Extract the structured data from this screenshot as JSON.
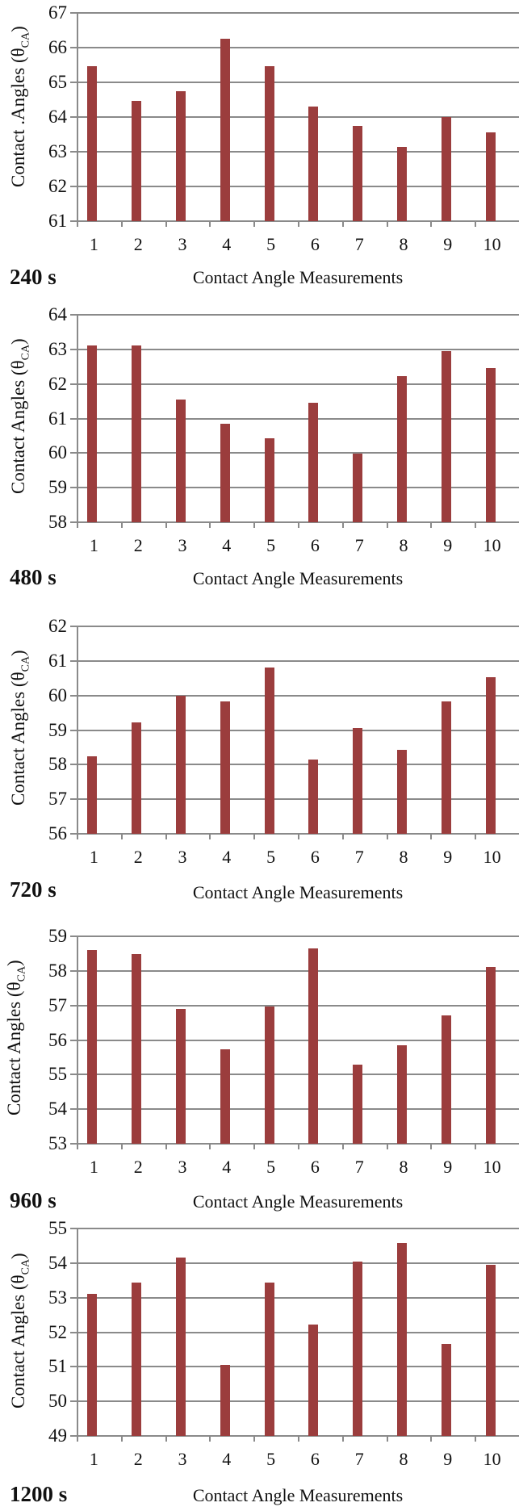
{
  "chart_data": [
    {
      "type": "bar",
      "title": "240 s",
      "xlabel": "Contact Angle Measurements",
      "ylabel": "Contact .Angles (θCA)",
      "categories": [
        "1",
        "2",
        "3",
        "4",
        "5",
        "6",
        "7",
        "8",
        "9",
        "10"
      ],
      "values": [
        65.47,
        64.47,
        64.74,
        66.25,
        65.47,
        64.3,
        63.75,
        63.15,
        64.0,
        63.55
      ],
      "ylim": [
        61,
        67
      ],
      "yticks": [
        61,
        62,
        63,
        64,
        65,
        66,
        67
      ],
      "grid": true,
      "color": "#9b3d3d"
    },
    {
      "type": "bar",
      "title": "480 s",
      "xlabel": "Contact Angle Measurements",
      "ylabel": "Contact Angles (θCA)",
      "categories": [
        "1",
        "2",
        "3",
        "4",
        "5",
        "6",
        "7",
        "8",
        "9",
        "10"
      ],
      "values": [
        63.12,
        63.12,
        61.55,
        60.85,
        60.42,
        61.45,
        59.98,
        62.23,
        62.94,
        62.47
      ],
      "ylim": [
        58,
        64
      ],
      "yticks": [
        58,
        59,
        60,
        61,
        62,
        63,
        64
      ],
      "grid": true,
      "color": "#9b3d3d"
    },
    {
      "type": "bar",
      "title": "720 s",
      "xlabel": "Contact Angle Measurements",
      "ylabel": "Contact Angles (θCA)",
      "categories": [
        "1",
        "2",
        "3",
        "4",
        "5",
        "6",
        "7",
        "8",
        "9",
        "10"
      ],
      "values": [
        58.24,
        59.23,
        60.0,
        59.83,
        60.8,
        58.15,
        59.07,
        58.42,
        59.83,
        60.54
      ],
      "ylim": [
        56,
        62
      ],
      "yticks": [
        56,
        57,
        58,
        59,
        60,
        61,
        62
      ],
      "grid": true,
      "color": "#9b3d3d"
    },
    {
      "type": "bar",
      "title": "960 s",
      "xlabel": "Contact Angle Measurements",
      "ylabel": "Contact Angles (θCA)",
      "categories": [
        "1",
        "2",
        "3",
        "4",
        "5",
        "6",
        "7",
        "8",
        "9",
        "10"
      ],
      "values": [
        58.6,
        58.48,
        56.91,
        55.72,
        56.98,
        58.65,
        55.29,
        55.85,
        56.72,
        58.12
      ],
      "ylim": [
        53,
        59
      ],
      "yticks": [
        53,
        54,
        55,
        56,
        57,
        58,
        59
      ],
      "grid": true,
      "color": "#9b3d3d"
    },
    {
      "type": "bar",
      "title": "1200 s",
      "xlabel": "Contact Angle Measurements",
      "ylabel": "Contact Angles (θCA)",
      "categories": [
        "1",
        "2",
        "3",
        "4",
        "5",
        "6",
        "7",
        "8",
        "9",
        "10"
      ],
      "values": [
        53.12,
        53.43,
        54.16,
        51.05,
        53.44,
        52.22,
        54.05,
        54.57,
        51.67,
        53.95
      ],
      "ylim": [
        49,
        55
      ],
      "yticks": [
        49,
        50,
        51,
        52,
        53,
        54,
        55
      ],
      "grid": true,
      "color": "#9b3d3d"
    }
  ],
  "panels": [
    {
      "time": "240 s",
      "ytitle_main": "Contact .Angles (θ",
      "ytitle_sub": "CA",
      "ytitle_end": ")",
      "xtitle": "Contact Angle Measurements"
    },
    {
      "time": "480 s",
      "ytitle_main": "Contact Angles (θ",
      "ytitle_sub": "CA",
      "ytitle_end": ")",
      "xtitle": "Contact Angle Measurements"
    },
    {
      "time": "720 s",
      "ytitle_main": "Contact Angles (θ",
      "ytitle_sub": "CA",
      "ytitle_end": ")",
      "xtitle": "Contact Angle Measurements"
    },
    {
      "time": "960 s",
      "ytitle_main": "Contact Angles (θ",
      "ytitle_sub": "CA",
      "ytitle_end": ")",
      "xtitle": "Contact Angle Measurements"
    },
    {
      "time": "1200 s",
      "ytitle_main": "Contact Angles (θ",
      "ytitle_sub": "CA",
      "ytitle_end": ")",
      "xtitle": "Contact Angle Measurements"
    }
  ]
}
